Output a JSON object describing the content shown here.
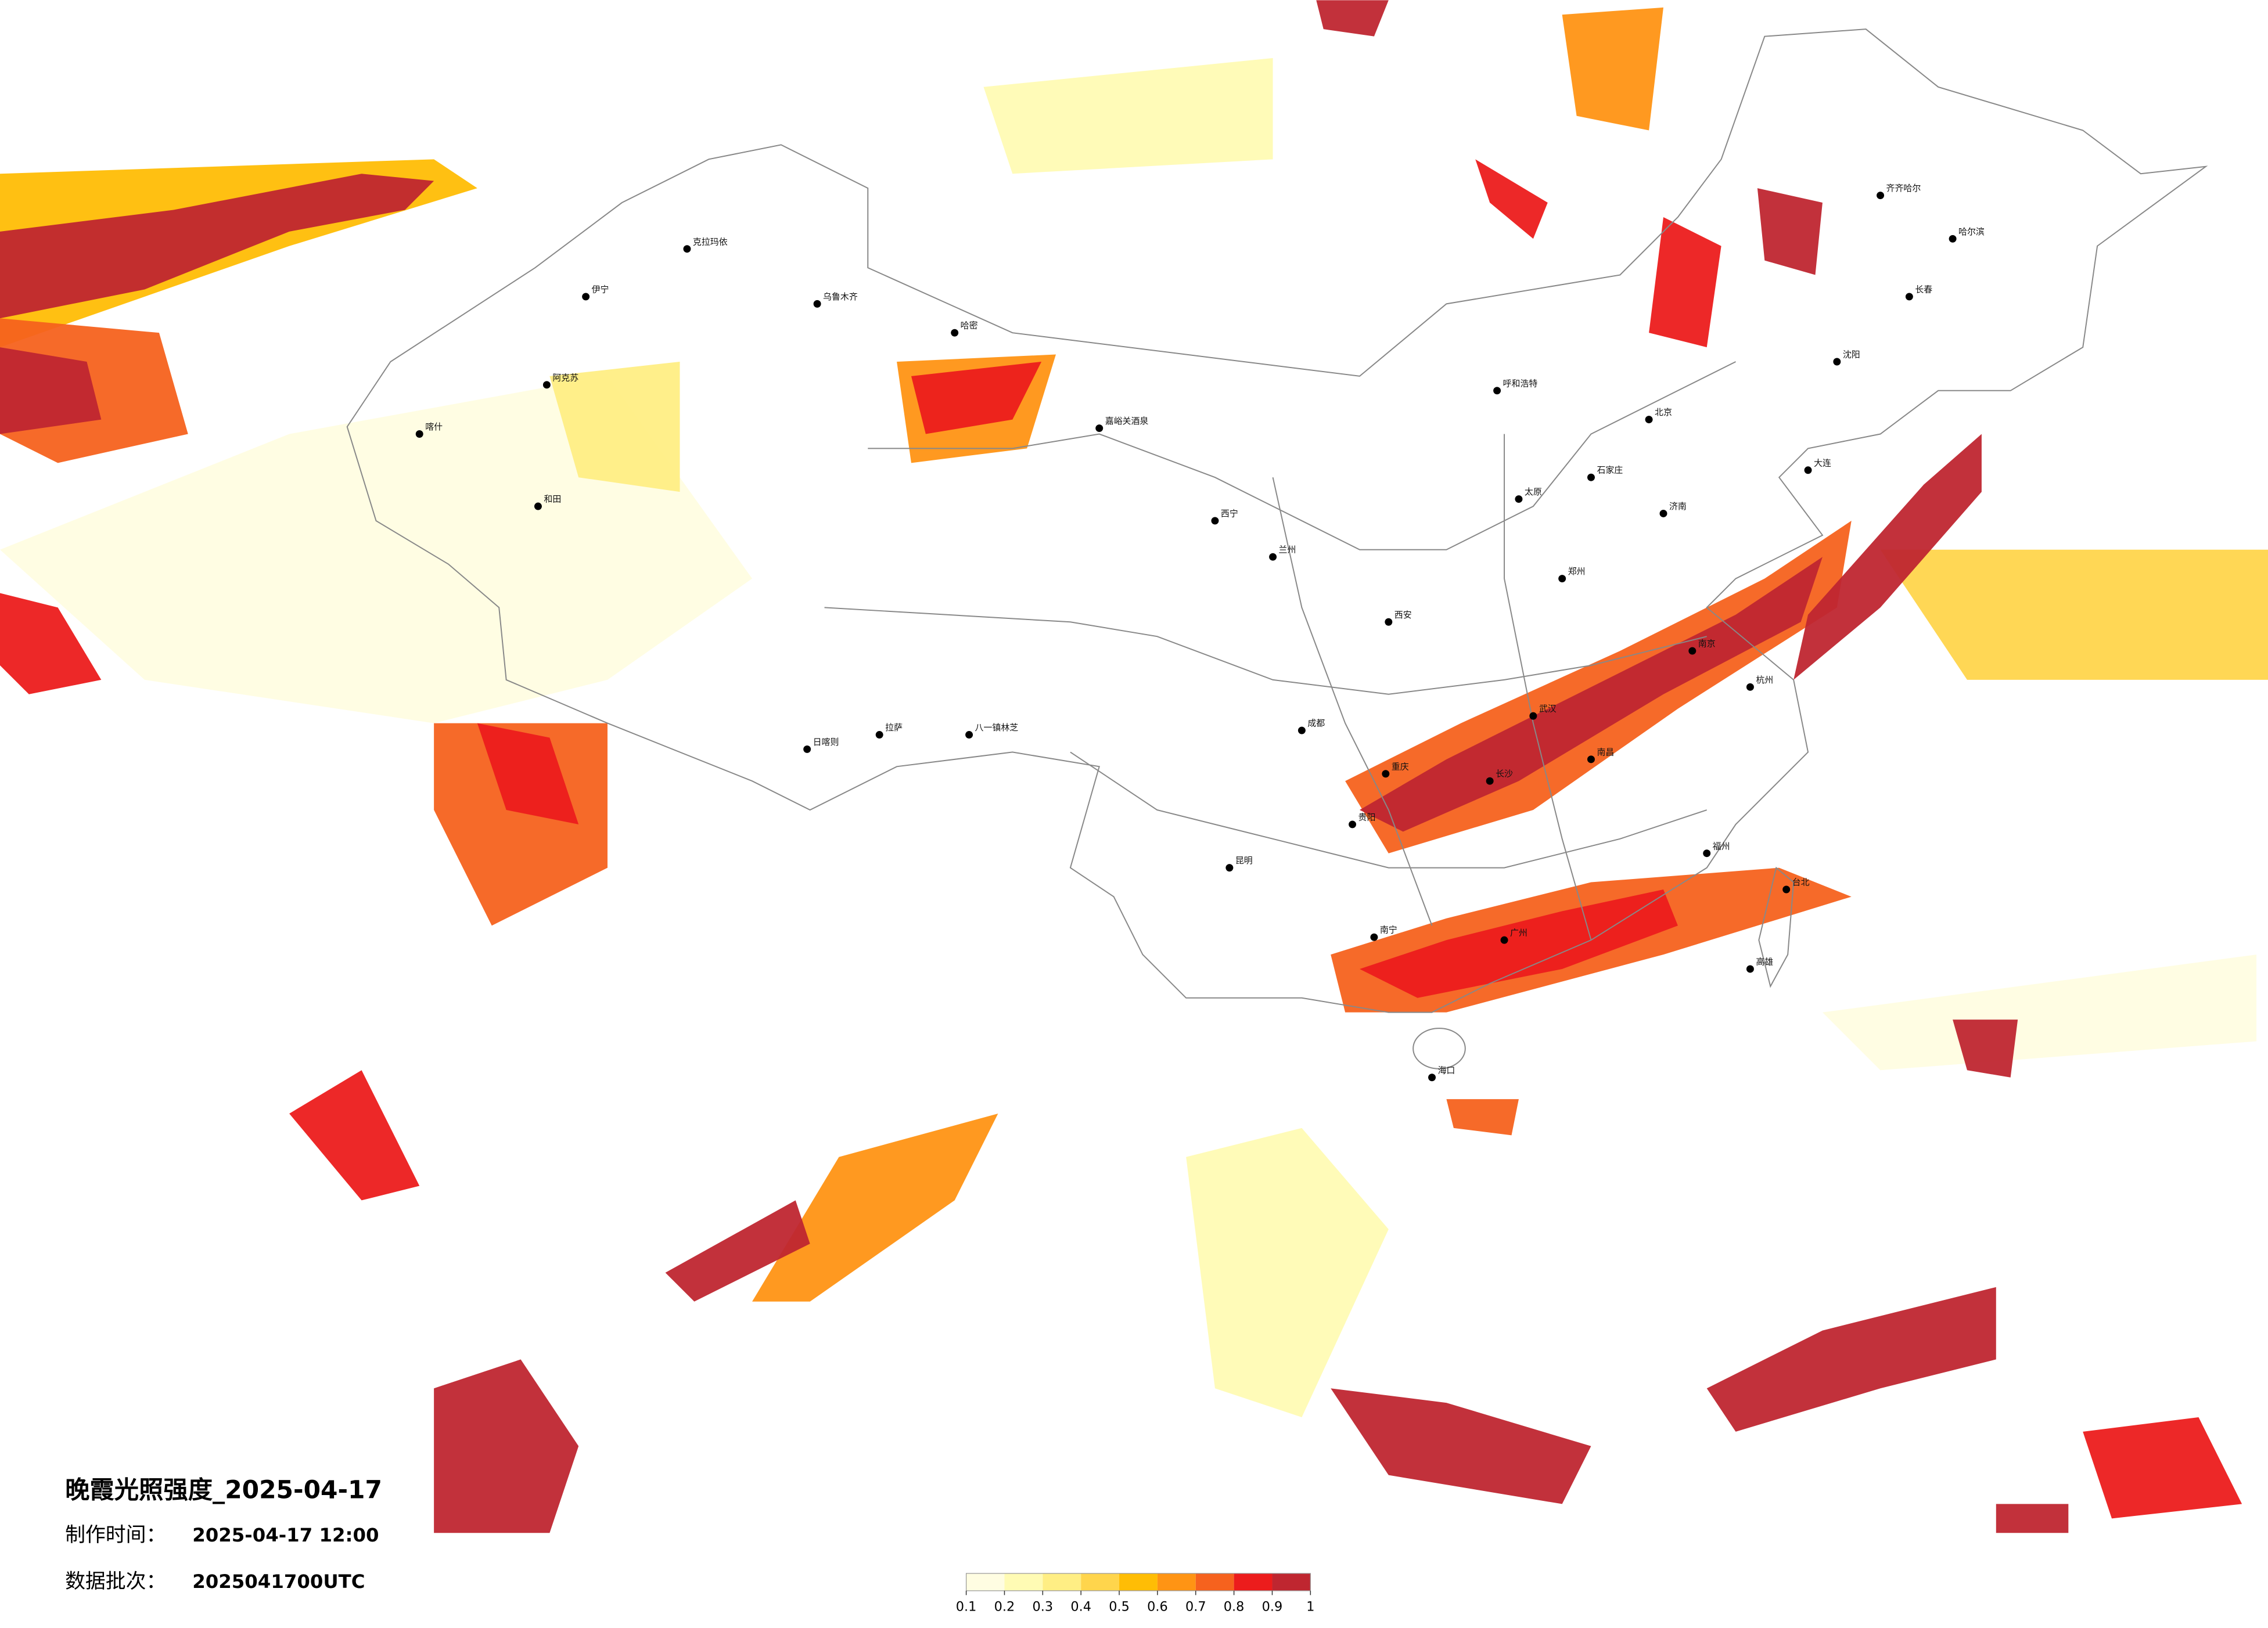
{
  "title": "晚霞光照强度_2025-04-17",
  "made_label": "制作时间：",
  "made_time": "2025-04-17 12:00",
  "batch_label": "数据批次：",
  "batch": "2025041700UTC",
  "colorbar": {
    "ticks": [
      0.1,
      0.2,
      0.3,
      0.4,
      0.5,
      0.6,
      0.7,
      0.8,
      0.9,
      1
    ],
    "colors": [
      "#fffde2",
      "#fffbb4",
      "#ffee84",
      "#ffd54c",
      "#ffbd05",
      "#ff9414",
      "#f6621e",
      "#ec1c1c",
      "#bf2630"
    ]
  },
  "cities": [
    "克拉玛依",
    "乌鲁木齐",
    "伊宁",
    "阿克苏",
    "喀什",
    "和田",
    "哈密",
    "嘉峪关酒泉",
    "拉萨",
    "日喀则",
    "八一镇林芝",
    "西宁",
    "兰州",
    "成都",
    "重庆",
    "昆明",
    "贵阳",
    "南宁",
    "广州",
    "海口",
    "武汉",
    "长沙",
    "南昌",
    "福州",
    "杭州",
    "南京",
    "郑州",
    "西安",
    "太原",
    "石家庄",
    "济南",
    "呼和浩特",
    "北京",
    "哈尔滨",
    "长春",
    "沈阳",
    "大连",
    "齐齐哈尔",
    "台北",
    "高雄"
  ]
}
